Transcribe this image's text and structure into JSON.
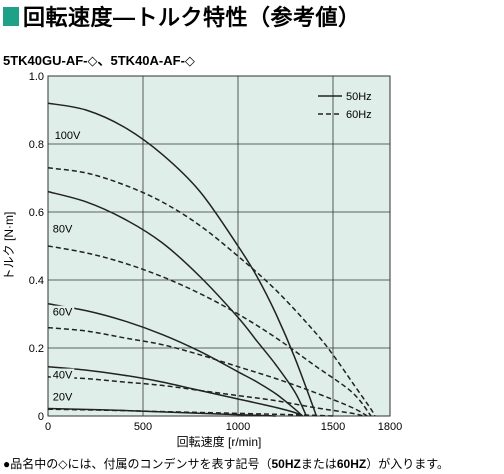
{
  "title": "回転速度―トルク特性（参考値）",
  "model_line": "5TK40GU-AF-◇、5TK40A-AF-◇",
  "footnote": {
    "prefix": "●品名中の◇には、付属のコンデンサを表す記号（",
    "bold1": "50HZ",
    "mid": "または",
    "bold2": "60HZ",
    "suffix": "）が入ります。"
  },
  "colors": {
    "title_accent": "#1fa187",
    "plot_background": "#dfeee9",
    "grid": "#333333",
    "curve": "#222222"
  },
  "chart_data": {
    "type": "line",
    "xlabel": "回転速度 [r/min]",
    "ylabel": "トルク [N·m]",
    "xlim": [
      0,
      1800
    ],
    "ylim": [
      0,
      1.0
    ],
    "x_ticks": [
      0,
      500,
      1000,
      1500,
      1800
    ],
    "y_ticks": [
      0,
      0.2,
      0.4,
      0.6,
      0.8,
      1.0
    ],
    "grid": true,
    "legend_position": "top-right",
    "legend": [
      {
        "label": "50Hz",
        "style": "solid"
      },
      {
        "label": "60Hz",
        "style": "dashed"
      }
    ],
    "voltage_labels": [
      {
        "text": "100V",
        "x": 30,
        "y": 0.815
      },
      {
        "text": "80V",
        "x": 20,
        "y": 0.54
      },
      {
        "text": "60V",
        "x": 20,
        "y": 0.295
      },
      {
        "text": "40V",
        "x": 20,
        "y": 0.11
      },
      {
        "text": "20V",
        "x": 20,
        "y": 0.045
      }
    ],
    "series": [
      {
        "voltage": "100V",
        "freq": "50Hz",
        "style": "solid",
        "points": [
          [
            0,
            0.92
          ],
          [
            200,
            0.9
          ],
          [
            400,
            0.85
          ],
          [
            600,
            0.77
          ],
          [
            800,
            0.66
          ],
          [
            1000,
            0.5
          ],
          [
            1100,
            0.41
          ],
          [
            1200,
            0.3
          ],
          [
            1300,
            0.17
          ],
          [
            1400,
            0.02
          ],
          [
            1410,
            0.0
          ]
        ]
      },
      {
        "voltage": "100V",
        "freq": "60Hz",
        "style": "dashed",
        "points": [
          [
            0,
            0.73
          ],
          [
            200,
            0.715
          ],
          [
            400,
            0.68
          ],
          [
            600,
            0.63
          ],
          [
            800,
            0.56
          ],
          [
            1000,
            0.47
          ],
          [
            1200,
            0.37
          ],
          [
            1400,
            0.25
          ],
          [
            1500,
            0.18
          ],
          [
            1600,
            0.1
          ],
          [
            1700,
            0.02
          ],
          [
            1720,
            0.0
          ]
        ]
      },
      {
        "voltage": "80V",
        "freq": "50Hz",
        "style": "solid",
        "points": [
          [
            0,
            0.66
          ],
          [
            200,
            0.63
          ],
          [
            400,
            0.58
          ],
          [
            600,
            0.51
          ],
          [
            800,
            0.41
          ],
          [
            1000,
            0.29
          ],
          [
            1100,
            0.22
          ],
          [
            1200,
            0.15
          ],
          [
            1300,
            0.07
          ],
          [
            1360,
            0.0
          ]
        ]
      },
      {
        "voltage": "80V",
        "freq": "60Hz",
        "style": "dashed",
        "points": [
          [
            0,
            0.5
          ],
          [
            200,
            0.48
          ],
          [
            400,
            0.45
          ],
          [
            600,
            0.41
          ],
          [
            800,
            0.36
          ],
          [
            1000,
            0.3
          ],
          [
            1200,
            0.23
          ],
          [
            1400,
            0.15
          ],
          [
            1600,
            0.07
          ],
          [
            1700,
            0.0
          ]
        ]
      },
      {
        "voltage": "60V",
        "freq": "50Hz",
        "style": "solid",
        "points": [
          [
            0,
            0.33
          ],
          [
            200,
            0.31
          ],
          [
            400,
            0.28
          ],
          [
            600,
            0.24
          ],
          [
            800,
            0.19
          ],
          [
            1000,
            0.13
          ],
          [
            1100,
            0.1
          ],
          [
            1200,
            0.065
          ],
          [
            1300,
            0.02
          ],
          [
            1340,
            0.0
          ]
        ]
      },
      {
        "voltage": "60V",
        "freq": "60Hz",
        "style": "dashed",
        "points": [
          [
            0,
            0.26
          ],
          [
            200,
            0.25
          ],
          [
            400,
            0.23
          ],
          [
            600,
            0.21
          ],
          [
            800,
            0.18
          ],
          [
            1000,
            0.145
          ],
          [
            1200,
            0.11
          ],
          [
            1400,
            0.07
          ],
          [
            1600,
            0.025
          ],
          [
            1680,
            0.0
          ]
        ]
      },
      {
        "voltage": "40V",
        "freq": "50Hz",
        "style": "solid",
        "points": [
          [
            0,
            0.145
          ],
          [
            200,
            0.135
          ],
          [
            400,
            0.12
          ],
          [
            600,
            0.1
          ],
          [
            800,
            0.075
          ],
          [
            1000,
            0.05
          ],
          [
            1200,
            0.025
          ],
          [
            1300,
            0.01
          ],
          [
            1340,
            0.0
          ]
        ]
      },
      {
        "voltage": "40V",
        "freq": "60Hz",
        "style": "dashed",
        "points": [
          [
            0,
            0.115
          ],
          [
            200,
            0.11
          ],
          [
            400,
            0.1
          ],
          [
            600,
            0.09
          ],
          [
            800,
            0.075
          ],
          [
            1000,
            0.06
          ],
          [
            1200,
            0.045
          ],
          [
            1400,
            0.025
          ],
          [
            1600,
            0.008
          ],
          [
            1660,
            0.0
          ]
        ]
      },
      {
        "voltage": "20V",
        "freq": "50Hz",
        "style": "solid",
        "points": [
          [
            0,
            0.022
          ],
          [
            300,
            0.018
          ],
          [
            600,
            0.012
          ],
          [
            900,
            0.006
          ],
          [
            1100,
            0.002
          ],
          [
            1200,
            0.0
          ]
        ]
      },
      {
        "voltage": "20V",
        "freq": "60Hz",
        "style": "dashed",
        "points": [
          [
            0,
            0.02
          ],
          [
            300,
            0.017
          ],
          [
            600,
            0.013
          ],
          [
            900,
            0.009
          ],
          [
            1200,
            0.005
          ],
          [
            1400,
            0.002
          ],
          [
            1500,
            0.0
          ]
        ]
      }
    ]
  }
}
